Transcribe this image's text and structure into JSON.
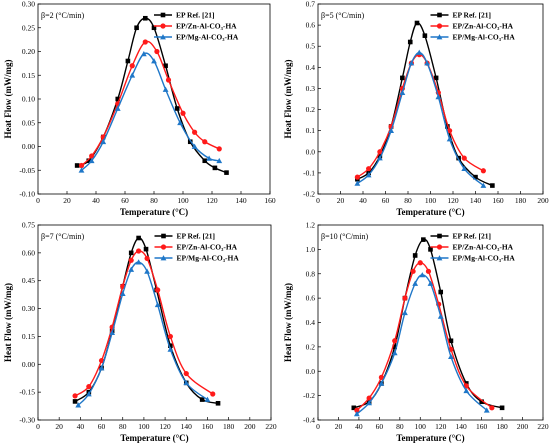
{
  "colors": {
    "ep_ref": "#000000",
    "zn": "#ff1a1a",
    "mg": "#1f77c8"
  },
  "legend": [
    "EP Ref. [21]",
    "EP/Zn-Al-CO₃-HA",
    "EP/Mg-Al-CO₃-HA"
  ],
  "chart_data": [
    {
      "type": "line",
      "rate_label": "β=2 (°C/min)",
      "xlabel": "Temperature (°C)",
      "ylabel": "Heat Flow (mW/mg)",
      "xlim": [
        0,
        160
      ],
      "ylim": [
        -0.1,
        0.3
      ],
      "xticks": [
        "0",
        "20",
        "40",
        "60",
        "80",
        "100",
        "120",
        "140",
        "160"
      ],
      "yticks": [
        "-0.10",
        "-0.05",
        "0.00",
        "0.05",
        "0.10",
        "0.15",
        "0.20",
        "0.25",
        "0.30"
      ],
      "series": [
        {
          "name": "EP Ref. [21]",
          "marker": "square",
          "x": [
            27,
            35,
            45,
            55,
            62,
            68,
            74,
            80,
            88,
            96,
            105,
            115,
            122,
            130
          ],
          "y": [
            -0.04,
            -0.03,
            0.02,
            0.1,
            0.18,
            0.25,
            0.27,
            0.25,
            0.17,
            0.08,
            0.01,
            -0.03,
            -0.045,
            -0.055
          ]
        },
        {
          "name": "EP/Zn-Al-CO₃-HA",
          "marker": "circle",
          "x": [
            30,
            37,
            45,
            55,
            65,
            74,
            82,
            90,
            100,
            108,
            115,
            125
          ],
          "y": [
            -0.04,
            -0.02,
            0.02,
            0.09,
            0.17,
            0.22,
            0.2,
            0.14,
            0.07,
            0.03,
            0.01,
            -0.005
          ]
        },
        {
          "name": "EP/Mg-Al-CO₃-HA",
          "marker": "triangle",
          "x": [
            30,
            37,
            45,
            55,
            65,
            73,
            80,
            88,
            98,
            108,
            118,
            125
          ],
          "y": [
            -0.05,
            -0.03,
            0.01,
            0.08,
            0.15,
            0.195,
            0.18,
            0.12,
            0.05,
            0.0,
            -0.025,
            -0.03
          ]
        }
      ]
    },
    {
      "type": "line",
      "rate_label": "β=5 (°C/min)",
      "xlabel": "Temperature (°C)",
      "ylabel": "Heat Flow (mW/mg)",
      "xlim": [
        0,
        200
      ],
      "ylim": [
        -0.2,
        0.7
      ],
      "xticks": [
        "0",
        "20",
        "40",
        "60",
        "80",
        "100",
        "120",
        "140",
        "160",
        "180",
        "200"
      ],
      "yticks": [
        "-0.2",
        "-0.1",
        "0.0",
        "0.1",
        "0.2",
        "0.3",
        "0.4",
        "0.5",
        "0.6",
        "0.7"
      ],
      "series": [
        {
          "name": "EP Ref. [21]",
          "marker": "square",
          "x": [
            35,
            45,
            55,
            65,
            75,
            82,
            88,
            95,
            105,
            115,
            125,
            140,
            155
          ],
          "y": [
            -0.13,
            -0.1,
            -0.02,
            0.12,
            0.35,
            0.52,
            0.61,
            0.55,
            0.35,
            0.12,
            -0.03,
            -0.12,
            -0.16
          ]
        },
        {
          "name": "EP/Zn-Al-CO₃-HA",
          "marker": "circle",
          "x": [
            35,
            45,
            55,
            65,
            75,
            83,
            90,
            97,
            107,
            117,
            130,
            147
          ],
          "y": [
            -0.12,
            -0.08,
            0.0,
            0.12,
            0.3,
            0.42,
            0.46,
            0.42,
            0.28,
            0.1,
            -0.03,
            -0.09
          ]
        },
        {
          "name": "EP/Mg-Al-CO₃-HA",
          "marker": "triangle",
          "x": [
            35,
            45,
            55,
            65,
            75,
            83,
            90,
            97,
            107,
            117,
            130,
            147
          ],
          "y": [
            -0.15,
            -0.11,
            -0.03,
            0.1,
            0.28,
            0.42,
            0.47,
            0.42,
            0.26,
            0.06,
            -0.08,
            -0.16
          ]
        }
      ]
    },
    {
      "type": "line",
      "rate_label": "β=7 (°C/min)",
      "xlabel": "Temperature (°C)",
      "ylabel": "Heat Flow (mW/mg)",
      "xlim": [
        0,
        220
      ],
      "ylim": [
        -0.3,
        0.75
      ],
      "xticks": [
        "0",
        "20",
        "40",
        "60",
        "80",
        "100",
        "120",
        "140",
        "160",
        "180",
        "200",
        "220"
      ],
      "yticks": [
        "-0.30",
        "-0.15",
        "0.00",
        "0.15",
        "0.30",
        "0.45",
        "0.60",
        "0.75"
      ],
      "series": [
        {
          "name": "EP Ref. [21]",
          "marker": "square",
          "x": [
            35,
            48,
            60,
            70,
            80,
            88,
            95,
            102,
            112,
            125,
            140,
            155,
            170
          ],
          "y": [
            -0.2,
            -0.15,
            -0.02,
            0.18,
            0.42,
            0.6,
            0.68,
            0.62,
            0.4,
            0.1,
            -0.1,
            -0.19,
            -0.21
          ]
        },
        {
          "name": "EP/Zn-Al-CO₃-HA",
          "marker": "circle",
          "x": [
            35,
            48,
            60,
            70,
            80,
            88,
            95,
            103,
            113,
            125,
            140,
            165
          ],
          "y": [
            -0.17,
            -0.12,
            0.02,
            0.2,
            0.42,
            0.56,
            0.61,
            0.57,
            0.4,
            0.15,
            -0.05,
            -0.16
          ]
        },
        {
          "name": "EP/Mg-Al-CO₃-HA",
          "marker": "triangle",
          "x": [
            38,
            48,
            60,
            70,
            80,
            88,
            95,
            103,
            113,
            125,
            140,
            160
          ],
          "y": [
            -0.22,
            -0.16,
            -0.02,
            0.17,
            0.38,
            0.51,
            0.55,
            0.5,
            0.32,
            0.08,
            -0.1,
            -0.19
          ]
        }
      ]
    },
    {
      "type": "line",
      "rate_label": "β=10 (°C/min)",
      "xlabel": "Temperature (°C)",
      "ylabel": "Heat Flow (mW/mg)",
      "xlim": [
        0,
        220
      ],
      "ylim": [
        -0.4,
        1.2
      ],
      "xticks": [
        "0",
        "20",
        "40",
        "60",
        "80",
        "100",
        "120",
        "140",
        "160",
        "180",
        "200",
        "220"
      ],
      "yticks": [
        "-0.4",
        "-0.2",
        "0.0",
        "0.2",
        "0.4",
        "0.6",
        "0.8",
        "1.0",
        "1.2"
      ],
      "series": [
        {
          "name": "EP Ref. [21]",
          "marker": "square",
          "x": [
            35,
            50,
            62,
            75,
            85,
            95,
            103,
            110,
            120,
            130,
            145,
            160,
            180
          ],
          "y": [
            -0.3,
            -0.25,
            -0.1,
            0.2,
            0.6,
            0.95,
            1.08,
            1.0,
            0.65,
            0.25,
            -0.1,
            -0.25,
            -0.3
          ]
        },
        {
          "name": "EP/Zn-Al-CO₃-HA",
          "marker": "circle",
          "x": [
            38,
            50,
            62,
            75,
            85,
            93,
            100,
            108,
            118,
            130,
            145,
            170
          ],
          "y": [
            -0.32,
            -0.22,
            -0.05,
            0.25,
            0.6,
            0.82,
            0.89,
            0.82,
            0.55,
            0.18,
            -0.12,
            -0.3
          ]
        },
        {
          "name": "EP/Mg-Al-CO₃-HA",
          "marker": "triangle",
          "x": [
            38,
            50,
            62,
            75,
            85,
            95,
            102,
            110,
            120,
            130,
            145,
            165
          ],
          "y": [
            -0.35,
            -0.26,
            -0.1,
            0.15,
            0.48,
            0.72,
            0.79,
            0.72,
            0.45,
            0.12,
            -0.16,
            -0.32
          ]
        }
      ]
    }
  ]
}
